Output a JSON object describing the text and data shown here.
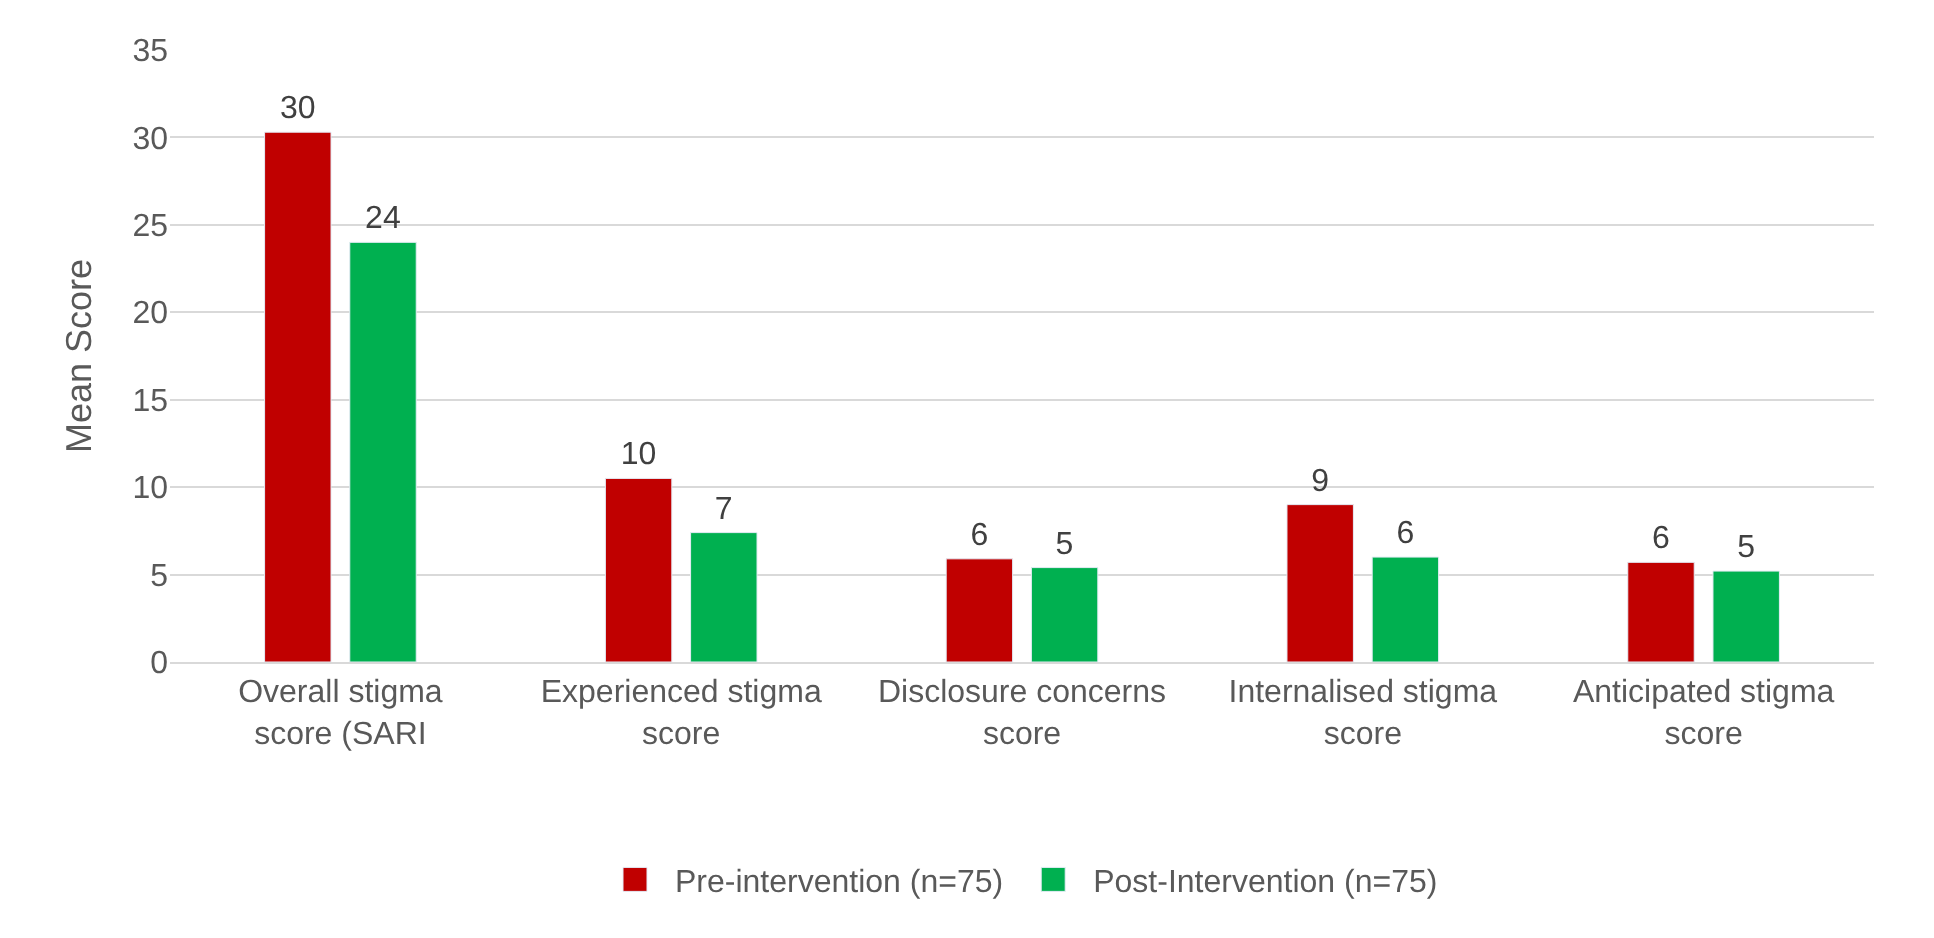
{
  "chart_data": {
    "type": "bar",
    "ylabel": "Mean Score",
    "categories": [
      "Overall stigma score (SARI",
      "Experienced stigma score",
      "Disclosure concerns score",
      "Internalised stigma score",
      "Anticipated stigma score"
    ],
    "series": [
      {
        "name": "Pre-intervention (n=75)",
        "color": "#c00000",
        "values": [
          30.3,
          10.5,
          5.9,
          9.0,
          5.7
        ],
        "value_labels": [
          "30",
          "10",
          "6",
          "9",
          "6"
        ]
      },
      {
        "name": "Post-Intervention (n=75)",
        "color": "#00b050",
        "values": [
          24.0,
          7.4,
          5.4,
          6.0,
          5.2
        ],
        "value_labels": [
          "24",
          "7",
          "5",
          "6",
          "5"
        ]
      }
    ],
    "ylim": [
      0,
      35
    ],
    "yticks": [
      0,
      5,
      10,
      15,
      20,
      25,
      30,
      35
    ],
    "grid": "y",
    "legend": "bottom"
  }
}
